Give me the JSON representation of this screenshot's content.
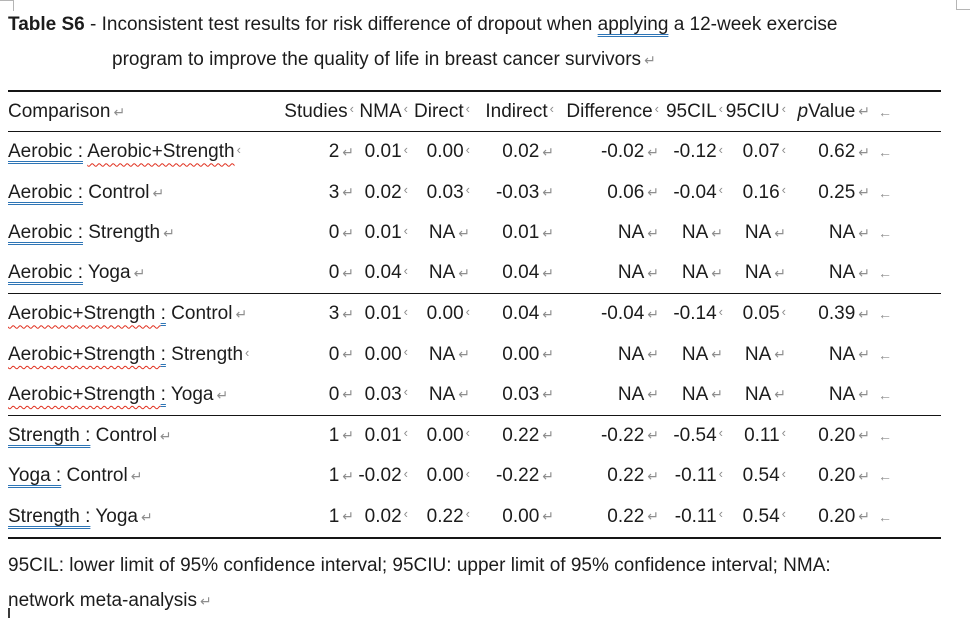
{
  "marks": {
    "ret": "↵",
    "tab": "‹",
    "row_end": "←"
  },
  "title": {
    "bold": "Table S6",
    "pre": " - Inconsistent test results for risk difference of dropout when ",
    "grammar_word": "applying",
    "post": " a 12-week exercise",
    "line2": "program to improve the quality of life in breast cancer survivors"
  },
  "table": {
    "columns": [
      {
        "label": "Comparison",
        "mark": "ret",
        "align": "left"
      },
      {
        "label": "Studies",
        "mark": "tab"
      },
      {
        "label": "NMA",
        "mark": "tab"
      },
      {
        "label": "Direct",
        "mark": "tab"
      },
      {
        "label": "Indirect",
        "mark": "tab"
      },
      {
        "label": "Difference",
        "mark": "tab"
      },
      {
        "label": "95CIL",
        "mark": "tab"
      },
      {
        "label": "95CIU",
        "mark": "tab"
      },
      {
        "label": "p Value",
        "mark": "ret",
        "italic_prefix": "p",
        "rest": " Value"
      }
    ],
    "rows": [
      {
        "comparison": [
          {
            "t": "Aerobic :",
            "u": "blue"
          },
          {
            "t": " ",
            "u": ""
          },
          {
            "t": "Aerobic+Strength",
            "u": "red"
          }
        ],
        "cmark": "tab",
        "sep": false,
        "values": [
          {
            "v": "2",
            "m": "ret"
          },
          {
            "v": "0.01",
            "m": "tab"
          },
          {
            "v": "0.00",
            "m": "tab"
          },
          {
            "v": "0.02",
            "m": "ret"
          },
          {
            "v": "-0.02",
            "m": "ret"
          },
          {
            "v": "-0.12",
            "m": "tab"
          },
          {
            "v": "0.07",
            "m": "tab"
          },
          {
            "v": "0.62",
            "m": "ret"
          }
        ]
      },
      {
        "comparison": [
          {
            "t": "Aerobic :",
            "u": "blue"
          },
          {
            "t": " Control",
            "u": ""
          }
        ],
        "cmark": "ret",
        "sep": false,
        "values": [
          {
            "v": "3",
            "m": "ret"
          },
          {
            "v": "0.02",
            "m": "tab"
          },
          {
            "v": "0.03",
            "m": "tab"
          },
          {
            "v": "-0.03",
            "m": "ret"
          },
          {
            "v": "0.06",
            "m": "ret"
          },
          {
            "v": "-0.04",
            "m": "tab"
          },
          {
            "v": "0.16",
            "m": "tab"
          },
          {
            "v": "0.25",
            "m": "ret"
          }
        ]
      },
      {
        "comparison": [
          {
            "t": "Aerobic :",
            "u": "blue"
          },
          {
            "t": " Strength",
            "u": ""
          }
        ],
        "cmark": "ret",
        "sep": false,
        "values": [
          {
            "v": "0",
            "m": "ret"
          },
          {
            "v": "0.01",
            "m": "tab"
          },
          {
            "v": "NA",
            "m": "ret"
          },
          {
            "v": "0.01",
            "m": "ret"
          },
          {
            "v": "NA",
            "m": "ret"
          },
          {
            "v": "NA",
            "m": "ret"
          },
          {
            "v": "NA",
            "m": "ret"
          },
          {
            "v": "NA",
            "m": "ret"
          }
        ]
      },
      {
        "comparison": [
          {
            "t": "Aerobic :",
            "u": "blue"
          },
          {
            "t": " Yoga",
            "u": ""
          }
        ],
        "cmark": "ret",
        "sep": true,
        "values": [
          {
            "v": "0",
            "m": "ret"
          },
          {
            "v": "0.04",
            "m": "tab"
          },
          {
            "v": "NA",
            "m": "ret"
          },
          {
            "v": "0.04",
            "m": "ret"
          },
          {
            "v": "NA",
            "m": "ret"
          },
          {
            "v": "NA",
            "m": "ret"
          },
          {
            "v": "NA",
            "m": "ret"
          },
          {
            "v": "NA",
            "m": "ret"
          }
        ]
      },
      {
        "comparison": [
          {
            "t": "Aerobic+Strength ",
            "u": "red"
          },
          {
            "t": ":",
            "u": "blue"
          },
          {
            "t": " Control",
            "u": ""
          }
        ],
        "cmark": "ret",
        "sep": false,
        "values": [
          {
            "v": "3",
            "m": "ret"
          },
          {
            "v": "0.01",
            "m": "tab"
          },
          {
            "v": "0.00",
            "m": "tab"
          },
          {
            "v": "0.04",
            "m": "ret"
          },
          {
            "v": "-0.04",
            "m": "ret"
          },
          {
            "v": "-0.14",
            "m": "tab"
          },
          {
            "v": "0.05",
            "m": "tab"
          },
          {
            "v": "0.39",
            "m": "ret"
          }
        ]
      },
      {
        "comparison": [
          {
            "t": "Aerobic+Strength ",
            "u": "red"
          },
          {
            "t": ":",
            "u": "blue"
          },
          {
            "t": " Strength",
            "u": ""
          }
        ],
        "cmark": "tab",
        "sep": false,
        "values": [
          {
            "v": "0",
            "m": "ret"
          },
          {
            "v": "0.00",
            "m": "tab"
          },
          {
            "v": "NA",
            "m": "ret"
          },
          {
            "v": "0.00",
            "m": "ret"
          },
          {
            "v": "NA",
            "m": "ret"
          },
          {
            "v": "NA",
            "m": "ret"
          },
          {
            "v": "NA",
            "m": "ret"
          },
          {
            "v": "NA",
            "m": "ret"
          }
        ]
      },
      {
        "comparison": [
          {
            "t": "Aerobic+Strength ",
            "u": "red"
          },
          {
            "t": ":",
            "u": "blue"
          },
          {
            "t": " Yoga",
            "u": ""
          }
        ],
        "cmark": "ret",
        "sep": true,
        "values": [
          {
            "v": "0",
            "m": "ret"
          },
          {
            "v": "0.03",
            "m": "tab"
          },
          {
            "v": "NA",
            "m": "ret"
          },
          {
            "v": "0.03",
            "m": "ret"
          },
          {
            "v": "NA",
            "m": "ret"
          },
          {
            "v": "NA",
            "m": "ret"
          },
          {
            "v": "NA",
            "m": "ret"
          },
          {
            "v": "NA",
            "m": "ret"
          }
        ]
      },
      {
        "comparison": [
          {
            "t": "Strength :",
            "u": "blue"
          },
          {
            "t": " Control",
            "u": ""
          }
        ],
        "cmark": "ret",
        "sep": false,
        "values": [
          {
            "v": "1",
            "m": "ret"
          },
          {
            "v": "0.01",
            "m": "tab"
          },
          {
            "v": "0.00",
            "m": "tab"
          },
          {
            "v": "0.22",
            "m": "ret"
          },
          {
            "v": "-0.22",
            "m": "ret"
          },
          {
            "v": "-0.54",
            "m": "tab"
          },
          {
            "v": "0.11",
            "m": "tab"
          },
          {
            "v": "0.20",
            "m": "ret"
          }
        ]
      },
      {
        "comparison": [
          {
            "t": "Yoga :",
            "u": "blue"
          },
          {
            "t": " Control",
            "u": ""
          }
        ],
        "cmark": "ret",
        "sep": false,
        "values": [
          {
            "v": "1",
            "m": "ret"
          },
          {
            "v": "-0.02",
            "m": "tab"
          },
          {
            "v": "0.00",
            "m": "tab"
          },
          {
            "v": "-0.22",
            "m": "ret"
          },
          {
            "v": "0.22",
            "m": "ret"
          },
          {
            "v": "-0.11",
            "m": "tab"
          },
          {
            "v": "0.54",
            "m": "tab"
          },
          {
            "v": "0.20",
            "m": "ret"
          }
        ]
      },
      {
        "comparison": [
          {
            "t": "Strength :",
            "u": "blue"
          },
          {
            "t": " Yoga",
            "u": ""
          }
        ],
        "cmark": "ret",
        "sep": false,
        "values": [
          {
            "v": "1",
            "m": "ret"
          },
          {
            "v": "0.02",
            "m": "tab"
          },
          {
            "v": "0.22",
            "m": "tab"
          },
          {
            "v": "0.00",
            "m": "ret"
          },
          {
            "v": "0.22",
            "m": "ret"
          },
          {
            "v": "-0.11",
            "m": "tab"
          },
          {
            "v": "0.54",
            "m": "tab"
          },
          {
            "v": "0.20",
            "m": "ret"
          }
        ]
      }
    ]
  },
  "footnote": {
    "line1": "95CIL: lower limit of 95% confidence interval; 95CIU: upper limit of 95% confidence interval; NMA:",
    "line2": "network meta-analysis"
  },
  "colors": {
    "grammar_underline": "#2E75B6",
    "spelling_underline": "#E02D1B",
    "formatting_marks": "#8e8e8e",
    "rule_lines": "#151515"
  }
}
